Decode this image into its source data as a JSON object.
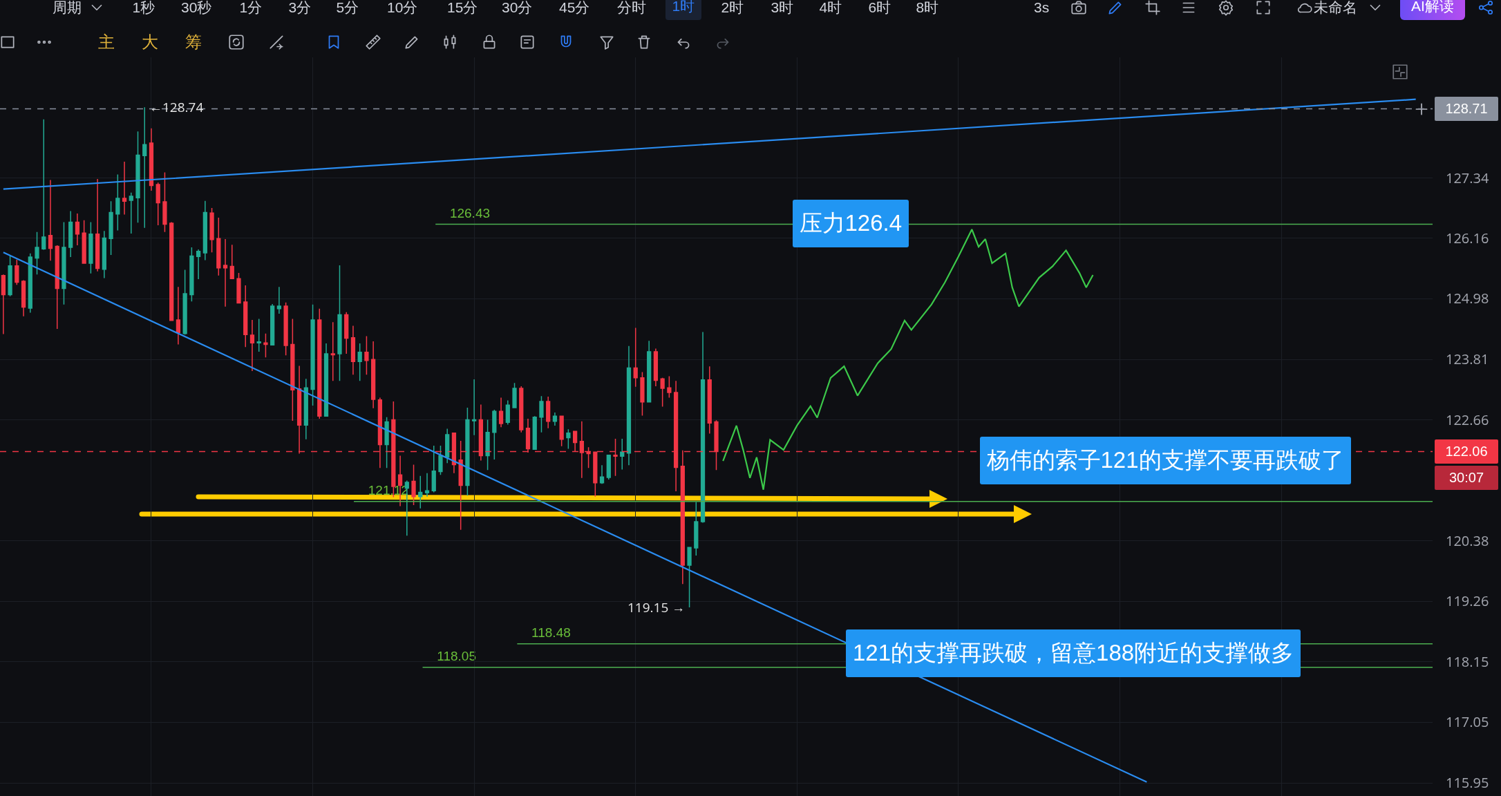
{
  "chart_data": {
    "type": "candlestick",
    "categories": [
      null,
      null,
      null,
      null,
      null,
      null,
      null,
      null,
      null,
      null,
      null,
      null,
      null,
      null,
      null,
      null,
      null,
      null,
      null,
      null,
      null,
      null,
      null,
      null,
      null,
      null,
      null,
      null,
      null,
      null,
      null,
      null,
      null,
      null,
      null,
      null,
      null,
      null,
      null,
      null,
      null,
      null,
      null,
      null,
      null,
      null,
      null,
      null,
      null,
      null,
      null,
      null,
      null,
      null,
      null,
      null,
      null,
      null,
      null,
      null,
      null,
      null,
      null,
      null,
      null,
      null,
      null,
      null,
      null,
      null,
      null,
      null,
      null,
      null,
      null,
      null,
      null,
      null,
      null,
      null,
      null,
      null,
      null,
      null,
      null,
      null,
      null,
      null,
      null,
      null,
      null,
      null,
      null,
      null,
      null,
      null,
      null,
      null,
      null,
      null,
      null,
      null,
      null,
      null,
      null,
      null,
      null,
      null,
      null,
      null,
      null,
      null,
      null,
      null,
      null,
      null,
      null,
      null,
      null,
      null,
      null,
      null,
      null,
      null,
      null,
      null,
      null,
      null,
      null,
      null,
      null,
      null,
      null,
      null,
      null,
      null,
      null,
      null,
      null,
      null,
      null,
      null,
      null,
      null,
      null,
      null,
      null,
      null,
      null,
      null,
      null,
      null,
      null,
      null,
      null,
      null,
      null,
      null,
      null,
      null,
      null,
      null,
      null,
      null,
      null,
      null,
      null,
      null,
      null,
      null,
      null,
      null,
      null,
      null,
      null,
      null,
      null,
      null,
      null,
      null,
      null,
      null,
      null,
      null,
      null,
      null,
      null,
      null,
      null,
      null,
      null,
      null,
      null,
      null,
      null,
      null,
      null,
      null,
      null,
      null,
      null,
      null,
      null,
      null,
      null,
      null,
      null,
      null,
      null,
      null,
      null,
      null,
      null
    ],
    "ohlc": [
      [
        125.43,
        125.45,
        124.3,
        125.06
      ],
      [
        125.06,
        125.83,
        125.03,
        125.62
      ],
      [
        125.62,
        125.74,
        125.25,
        125.3
      ],
      [
        125.32,
        125.34,
        124.64,
        124.82
      ],
      [
        124.8,
        125.86,
        124.71,
        125.79
      ],
      [
        125.77,
        126.28,
        125.45,
        125.98
      ],
      [
        125.95,
        128.5,
        125.93,
        126.18
      ],
      [
        126.21,
        127.3,
        125.72,
        125.96
      ],
      [
        126.0,
        126.02,
        124.4,
        125.18
      ],
      [
        125.18,
        126.47,
        124.87,
        125.98
      ],
      [
        125.98,
        126.69,
        125.79,
        126.47
      ],
      [
        126.47,
        126.64,
        126.02,
        126.24
      ],
      [
        126.26,
        126.51,
        125.66,
        125.67
      ],
      [
        125.67,
        126.47,
        125.47,
        126.24
      ],
      [
        126.24,
        127.32,
        125.51,
        125.57
      ],
      [
        125.55,
        126.3,
        125.38,
        126.16
      ],
      [
        126.15,
        126.88,
        125.83,
        126.66
      ],
      [
        126.63,
        127.41,
        126.31,
        126.94
      ],
      [
        126.94,
        127.66,
        126.62,
        126.88
      ],
      [
        126.9,
        127.05,
        126.25,
        126.98
      ],
      [
        126.95,
        128.26,
        126.46,
        127.79
      ],
      [
        127.78,
        128.74,
        126.36,
        128.0
      ],
      [
        128.03,
        128.32,
        127.09,
        127.19
      ],
      [
        127.21,
        127.25,
        126.41,
        126.85
      ],
      [
        126.87,
        127.45,
        126.28,
        126.43
      ],
      [
        126.45,
        126.47,
        124.55,
        124.56
      ],
      [
        124.57,
        125.21,
        124.1,
        124.33
      ],
      [
        124.31,
        125.54,
        124.29,
        125.08
      ],
      [
        125.06,
        125.98,
        124.93,
        125.81
      ],
      [
        125.8,
        125.94,
        125.36,
        125.9
      ],
      [
        125.87,
        126.89,
        125.73,
        126.66
      ],
      [
        126.65,
        126.75,
        125.88,
        126.13
      ],
      [
        126.15,
        126.56,
        125.43,
        125.58
      ],
      [
        125.63,
        126.14,
        124.83,
        125.58
      ],
      [
        125.61,
        126.03,
        125.37,
        125.37
      ],
      [
        125.37,
        125.48,
        124.9,
        124.9
      ],
      [
        124.92,
        125.24,
        124.05,
        124.29
      ],
      [
        124.28,
        124.57,
        123.59,
        124.13
      ],
      [
        124.13,
        124.59,
        123.96,
        124.15
      ],
      [
        124.13,
        124.31,
        123.85,
        124.1
      ],
      [
        124.09,
        124.88,
        124.08,
        124.84
      ],
      [
        124.79,
        125.21,
        124.69,
        124.84
      ],
      [
        124.84,
        124.91,
        123.89,
        124.08
      ],
      [
        124.1,
        124.59,
        122.64,
        123.23
      ],
      [
        123.25,
        123.69,
        122.02,
        122.56
      ],
      [
        122.56,
        123.44,
        122.29,
        123.27
      ],
      [
        123.24,
        124.87,
        122.93,
        124.57
      ],
      [
        124.57,
        124.79,
        122.68,
        122.73
      ],
      [
        122.73,
        124.12,
        122.72,
        123.92
      ],
      [
        123.92,
        124.53,
        123.4,
        123.9
      ],
      [
        123.92,
        125.63,
        123.4,
        124.67
      ],
      [
        124.67,
        124.72,
        123.92,
        124.22
      ],
      [
        124.23,
        124.46,
        123.52,
        123.77
      ],
      [
        123.77,
        124.12,
        123.4,
        123.95
      ],
      [
        123.95,
        124.26,
        123.52,
        123.79
      ],
      [
        123.81,
        124.16,
        122.88,
        123.05
      ],
      [
        123.04,
        123.08,
        121.75,
        122.19
      ],
      [
        122.19,
        122.71,
        121.75,
        122.62
      ],
      [
        122.66,
        123.01,
        121.2,
        121.4
      ],
      [
        121.62,
        121.98,
        121.03,
        121.42
      ],
      [
        121.37,
        121.51,
        120.48,
        121.48
      ],
      [
        121.5,
        121.81,
        121.05,
        121.21
      ],
      [
        121.21,
        121.6,
        120.99,
        121.29
      ],
      [
        121.28,
        121.65,
        121.21,
        121.32
      ],
      [
        121.32,
        122.17,
        121.29,
        121.69
      ],
      [
        121.68,
        122.17,
        121.62,
        121.98
      ],
      [
        121.95,
        122.49,
        121.84,
        122.38
      ],
      [
        122.41,
        122.41,
        121.65,
        121.81
      ],
      [
        121.9,
        122.26,
        120.59,
        121.42
      ],
      [
        121.42,
        122.89,
        121.23,
        122.66
      ],
      [
        122.64,
        123.43,
        122.37,
        122.66
      ],
      [
        122.66,
        122.95,
        121.89,
        121.98
      ],
      [
        121.98,
        122.66,
        121.71,
        122.42
      ],
      [
        122.42,
        122.85,
        121.91,
        122.82
      ],
      [
        122.82,
        123.08,
        122.52,
        122.59
      ],
      [
        122.61,
        123.03,
        122.57,
        122.94
      ],
      [
        122.89,
        123.36,
        122.88,
        123.26
      ],
      [
        123.26,
        123.3,
        122.42,
        122.47
      ],
      [
        122.5,
        122.68,
        122.04,
        122.11
      ],
      [
        122.1,
        122.73,
        122.09,
        122.71
      ],
      [
        122.71,
        123.11,
        122.42,
        123.01
      ],
      [
        123.01,
        123.1,
        122.5,
        122.63
      ],
      [
        122.63,
        122.8,
        122.55,
        122.73
      ],
      [
        122.73,
        122.73,
        122.16,
        122.29
      ],
      [
        122.32,
        122.48,
        122.11,
        122.41
      ],
      [
        122.44,
        122.44,
        122.06,
        122.23
      ],
      [
        122.25,
        122.63,
        121.56,
        122.04
      ],
      [
        122.05,
        122.14,
        121.75,
        122.02
      ],
      [
        122.05,
        122.05,
        121.21,
        121.47
      ],
      [
        121.47,
        121.8,
        121.45,
        121.58
      ],
      [
        121.57,
        122.0,
        121.53,
        121.99
      ],
      [
        121.99,
        122.3,
        121.6,
        121.97
      ],
      [
        121.97,
        122.3,
        121.72,
        122.05
      ],
      [
        122.03,
        124.07,
        121.8,
        123.65
      ],
      [
        123.65,
        124.42,
        123.29,
        123.46
      ],
      [
        123.46,
        123.57,
        122.74,
        123.0
      ],
      [
        123.0,
        124.17,
        123.0,
        123.96
      ],
      [
        123.96,
        124.02,
        123.3,
        123.41
      ],
      [
        123.44,
        123.46,
        122.91,
        123.26
      ],
      [
        123.27,
        123.49,
        123.08,
        123.18
      ],
      [
        123.18,
        123.4,
        121.31,
        121.76
      ],
      [
        121.78,
        122.08,
        119.58,
        119.93
      ],
      [
        119.93,
        120.26,
        119.15,
        120.26
      ],
      [
        120.25,
        121.11,
        120.11,
        120.74
      ],
      [
        120.74,
        124.34,
        120.72,
        123.42
      ],
      [
        123.42,
        123.68,
        122.4,
        122.6
      ],
      [
        122.62,
        122.65,
        121.71,
        122.06
      ],
      null,
      null,
      null,
      null,
      null,
      null,
      null,
      null,
      null,
      null,
      null,
      null,
      null,
      null,
      null,
      null,
      null,
      null,
      null,
      null,
      null,
      null,
      null,
      null,
      null,
      null,
      null,
      null,
      null,
      null,
      null,
      null,
      null,
      null,
      null,
      null,
      null,
      null,
      null,
      null,
      null,
      null,
      null,
      null,
      null,
      null,
      null,
      null,
      null,
      null,
      null,
      null,
      null,
      null,
      null,
      null,
      null,
      null,
      null,
      null,
      null,
      null,
      null,
      null,
      null,
      null,
      null,
      null,
      null,
      null,
      null,
      null,
      null,
      null,
      null,
      null,
      null,
      null,
      null,
      null,
      null,
      null,
      null,
      null,
      null,
      null,
      null,
      null,
      null,
      null,
      null,
      null,
      null,
      null,
      null,
      null,
      null,
      null,
      null,
      null,
      null,
      null,
      null,
      null,
      null,
      null
    ],
    "series": [
      {
        "type": "line",
        "color": "#2a8cf0",
        "values": [
          127.12,
          null,
          null,
          null,
          null,
          null,
          null,
          null,
          null,
          null,
          null,
          null,
          null,
          null,
          null,
          null,
          null,
          null,
          null,
          null,
          null,
          null,
          null,
          null,
          null,
          null,
          null,
          null,
          null,
          null,
          null,
          null,
          null,
          null,
          null,
          null,
          null,
          null,
          null,
          null,
          null,
          null,
          null,
          null,
          null,
          null,
          null,
          null,
          null,
          null,
          null,
          null,
          null,
          null,
          null,
          null,
          null,
          null,
          null,
          null,
          null,
          null,
          null,
          null,
          null,
          null,
          null,
          null,
          null,
          null,
          null,
          null,
          null,
          null,
          null,
          null,
          null,
          null,
          null,
          null,
          null,
          null,
          null,
          null,
          null,
          null,
          null,
          null,
          null,
          null,
          null,
          null,
          null,
          null,
          null,
          null,
          null,
          null,
          null,
          null,
          null,
          null,
          null,
          null,
          null,
          null,
          null,
          null,
          null,
          null,
          null,
          null,
          null,
          null,
          null,
          null,
          null,
          null,
          null,
          null,
          null,
          null,
          null,
          null,
          null,
          null,
          null,
          null,
          null,
          null,
          null,
          null,
          null,
          null,
          null,
          null,
          null,
          null,
          null,
          null,
          null,
          null,
          null,
          null,
          null,
          null,
          null,
          null,
          null,
          null,
          null,
          null,
          null,
          null,
          null,
          null,
          null,
          null,
          null,
          null,
          null,
          null,
          null,
          null,
          null,
          null,
          null,
          null,
          null,
          null,
          null,
          null,
          null,
          null,
          null,
          null,
          null,
          null,
          null,
          null,
          null,
          null,
          null,
          null,
          null,
          null,
          null,
          null,
          null,
          null,
          null,
          null,
          null,
          null,
          null,
          null,
          null,
          null,
          null,
          null,
          null,
          null,
          null,
          null,
          null,
          null,
          null,
          null,
          null,
          null,
          128.9,
          null,
          null
        ]
      },
      {
        "type": "line",
        "color": "#2a8cf0",
        "values": [
          125.88,
          null,
          null,
          null,
          null,
          null,
          null,
          null,
          null,
          null,
          null,
          null,
          null,
          null,
          null,
          null,
          null,
          null,
          null,
          null,
          null,
          null,
          null,
          null,
          null,
          null,
          null,
          null,
          null,
          null,
          null,
          null,
          null,
          null,
          null,
          null,
          null,
          null,
          null,
          null,
          null,
          null,
          null,
          null,
          null,
          null,
          null,
          null,
          null,
          null,
          null,
          null,
          null,
          null,
          null,
          null,
          null,
          null,
          null,
          null,
          null,
          null,
          null,
          null,
          null,
          null,
          null,
          null,
          null,
          null,
          null,
          null,
          null,
          null,
          null,
          null,
          null,
          null,
          null,
          null,
          null,
          null,
          null,
          null,
          null,
          null,
          null,
          null,
          null,
          null,
          null,
          null,
          null,
          null,
          null,
          null,
          null,
          null,
          null,
          null,
          null,
          null,
          null,
          null,
          null,
          null,
          null,
          null,
          null,
          null,
          null,
          null,
          null,
          null,
          null,
          null,
          null,
          null,
          null,
          null,
          null,
          null,
          null,
          null,
          null,
          null,
          null,
          null,
          null,
          null,
          null,
          null,
          null,
          null,
          null,
          null,
          null,
          null,
          null,
          null,
          null,
          null,
          null,
          null,
          null,
          null,
          null,
          null,
          null,
          null,
          null,
          null,
          null,
          null,
          null,
          null,
          null,
          null,
          null,
          null,
          null,
          null,
          null,
          null,
          null,
          null,
          null,
          null,
          null,
          null,
          115.97,
          null,
          null,
          null,
          null,
          null,
          null,
          null,
          null,
          null,
          null,
          null,
          null,
          null,
          null,
          null,
          null,
          null,
          null,
          null,
          null,
          null,
          null,
          null,
          null,
          null,
          null,
          null,
          null,
          null,
          null,
          null,
          null,
          null,
          null,
          null,
          null,
          null,
          null,
          null,
          null,
          null,
          null
        ]
      },
      {
        "type": "line",
        "color": "#3cc94a",
        "values": [
          null,
          null,
          null,
          null,
          null,
          null,
          null,
          null,
          null,
          null,
          null,
          null,
          null,
          null,
          null,
          null,
          null,
          null,
          null,
          null,
          null,
          null,
          null,
          null,
          null,
          null,
          null,
          null,
          null,
          null,
          null,
          null,
          null,
          null,
          null,
          null,
          null,
          null,
          null,
          null,
          null,
          null,
          null,
          null,
          null,
          null,
          null,
          null,
          null,
          null,
          null,
          null,
          null,
          null,
          null,
          null,
          null,
          null,
          null,
          null,
          null,
          null,
          null,
          null,
          null,
          null,
          null,
          null,
          null,
          null,
          null,
          null,
          null,
          null,
          null,
          null,
          null,
          null,
          null,
          null,
          null,
          null,
          null,
          null,
          null,
          null,
          null,
          null,
          null,
          null,
          null,
          null,
          null,
          null,
          null,
          null,
          null,
          null,
          null,
          null,
          null,
          null,
          null,
          null,
          null,
          null,
          null,
          121.88,
          null,
          122.55,
          122.09,
          121.56,
          121.95,
          121.34,
          122.28,
          null,
          122.09,
          null,
          122.55,
          null,
          122.92,
          122.7,
          null,
          123.46,
          null,
          123.68,
          null,
          123.12,
          null,
          null,
          123.74,
          null,
          124.01,
          null,
          124.56,
          124.38,
          null,
          null,
          124.87,
          null,
          125.3,
          null,
          125.8,
          null,
          126.33,
          125.99,
          126.14,
          125.67,
          null,
          125.86,
          125.2,
          124.83,
          null,
          null,
          125.39,
          null,
          125.61,
          null,
          125.92,
          null,
          125.48,
          125.2,
          125.44,
          null,
          null,
          null,
          null,
          null,
          null,
          null,
          null,
          null,
          null,
          null,
          null,
          null,
          null,
          null,
          null,
          null,
          null,
          null,
          null,
          null,
          null,
          null,
          null,
          null,
          null,
          null,
          null,
          null,
          null,
          null,
          null,
          null,
          null,
          null,
          null,
          null,
          null,
          null,
          null,
          null,
          null,
          null,
          null,
          null,
          null,
          null,
          null,
          null,
          null
        ]
      }
    ],
    "ylim": [
      115.72,
      129.74
    ],
    "yticks": [
      115.95,
      117.05,
      118.15,
      119.26,
      120.38,
      122.66,
      123.81,
      124.98,
      126.16,
      127.34
    ],
    "log": true,
    "grid": true,
    "tick_labels": "y",
    "ref_lines": [
      {
        "axis": "y",
        "value": 128.71,
        "label": "128.71",
        "color": "#8a919e",
        "line_style": "dashed"
      },
      {
        "axis": "y",
        "value": 122.06,
        "label": "122.06",
        "color": "#f23645",
        "line_style": "dashed"
      },
      {
        "axis": "y",
        "value": 126.43,
        "label": "126.43",
        "color": "#4caf50"
      },
      {
        "axis": "y",
        "value": 121.12,
        "label": "121.12",
        "color": "#4caf50"
      },
      {
        "axis": "y",
        "value": 118.48,
        "label": "118.48",
        "color": "#4caf50"
      },
      {
        "axis": "y",
        "value": 118.05,
        "label": "118.05",
        "color": "#4caf50"
      }
    ],
    "annotations": [
      "压力126.4",
      "杨伟的索子121的支撑不要再跌破了",
      "121的支撑再跌破，留意188附近的支撑做多",
      "30:07",
      "←128.74",
      "119.15 →",
      "周期",
      "1秒",
      "30秒",
      "1分",
      "3分",
      "5分",
      "10分",
      "15分",
      "30分",
      "45分",
      "分时",
      "1时",
      "2时",
      "3时",
      "4时",
      "6时",
      "8时",
      "3s",
      "未命名",
      "AI解读",
      "主",
      "大",
      "筹"
    ]
  }
}
